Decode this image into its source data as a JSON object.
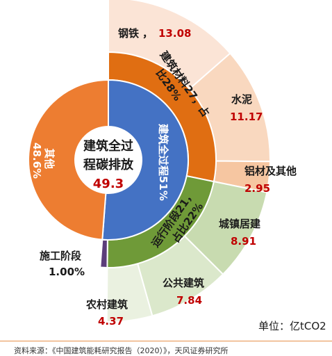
{
  "chart_data": {
    "type": "sunburst",
    "center": {
      "title_line1": "建筑全过",
      "title_line2": "程碳排放",
      "value": "49.3"
    },
    "inner_ring": [
      {
        "name": "建筑全过程51%",
        "value": 51,
        "color": "#4472c4"
      },
      {
        "name": "其他 48.6%",
        "value": 48.6,
        "color": "#ed7d31"
      }
    ],
    "middle_ring": [
      {
        "name": "建筑材料27，占比28%",
        "line1": "建筑材料27，占",
        "line2": "比28%",
        "value": 27,
        "color": "#e06e12"
      },
      {
        "name": "运行阶段21，占比22%",
        "line1": "运行阶段21，",
        "line2": "占比22%",
        "value": 21,
        "color": "#6f9a38"
      },
      {
        "name": "施工阶段",
        "value": 1.0,
        "color": "#5b3d7a"
      }
    ],
    "outer_ring": [
      {
        "name": "钢铁",
        "value": 13.08,
        "color": "#fbe4d6"
      },
      {
        "name": "水泥",
        "value": 11.17,
        "color": "#f9d8bf"
      },
      {
        "name": "铝材及其他",
        "value": 2.95,
        "color": "#f6c6a1"
      },
      {
        "name": "城镇居建",
        "value": 8.91,
        "color": "#c8dbb0"
      },
      {
        "name": "公共建筑",
        "value": 7.84,
        "color": "#dbe8cb"
      },
      {
        "name": "农村建筑",
        "value": 4.37,
        "color": "#eaf1e0"
      }
    ],
    "construction_label": {
      "name": "施工阶段",
      "value": "1.00%"
    },
    "other_label": {
      "line1": "其他",
      "line2": "48.6%"
    },
    "unit": "单位：亿tCO2"
  },
  "source_text": "资料来源：《中国建筑能耗研究报告（2020）》，天风证券研究所"
}
